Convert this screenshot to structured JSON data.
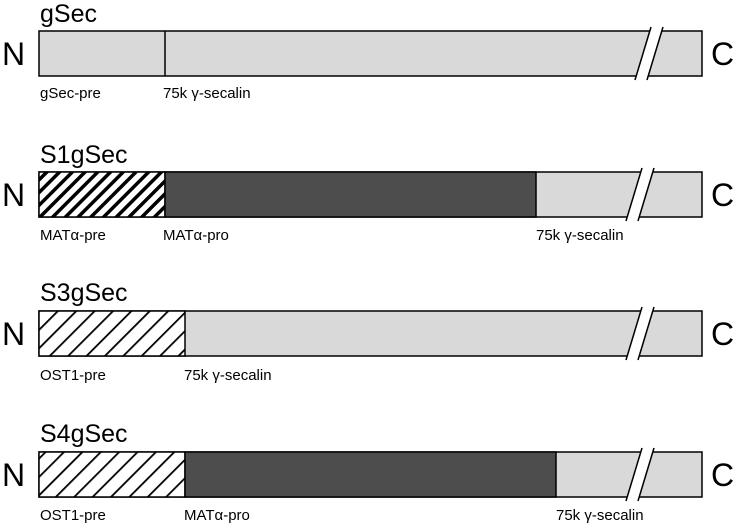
{
  "colors": {
    "light_segment": "#d9d9d9",
    "dark_segment": "#4d4d4d",
    "hatch_fill": "#ffffff",
    "outline": "#000000"
  },
  "constructs": [
    {
      "title": "gSec",
      "n_label": "N",
      "c_label": "C",
      "labels": [
        "gSec-pre",
        "75k γ-secalin"
      ]
    },
    {
      "title": "S1gSec",
      "n_label": "N",
      "c_label": "C",
      "labels": [
        "MATα-pre",
        "MATα-pro",
        "75k γ-secalin"
      ]
    },
    {
      "title": "S3gSec",
      "n_label": "N",
      "c_label": "C",
      "labels": [
        "OST1-pre",
        "75k γ-secalin"
      ]
    },
    {
      "title": "S4gSec",
      "n_label": "N",
      "c_label": "C",
      "labels": [
        "OST1-pre",
        "MATα-pro",
        "75k γ-secalin"
      ]
    }
  ]
}
